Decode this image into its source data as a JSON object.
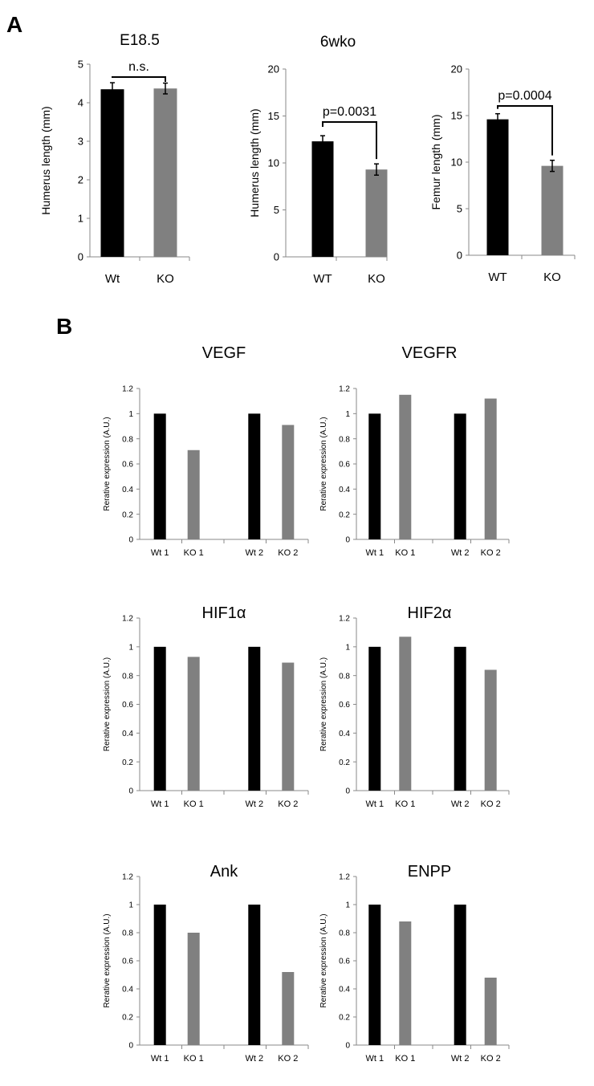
{
  "panel_labels": [
    "A",
    "B"
  ],
  "colors": {
    "wt": "#000000",
    "ko": "#808080",
    "axis": "#888888"
  },
  "chart_data": [
    {
      "type": "bar",
      "title": "E18.5",
      "ylabel": "Humerus length (mm)",
      "categories": [
        "Wt",
        "KO"
      ],
      "values": [
        4.35,
        4.37
      ],
      "errors": [
        0.17,
        0.14
      ],
      "ylim": [
        0,
        5
      ],
      "yticks": [
        "0",
        "1",
        "2",
        "3",
        "4",
        "5"
      ],
      "annotation": "n.s.",
      "grid": false,
      "legend": "none"
    },
    {
      "type": "bar",
      "title": "6wko",
      "ylabel": "Humerus length (mm)",
      "categories": [
        "WT",
        "KO"
      ],
      "values": [
        12.3,
        9.3
      ],
      "errors": [
        0.6,
        0.6
      ],
      "ylim": [
        0,
        20
      ],
      "yticks": [
        "0",
        "5",
        "10",
        "15",
        "20"
      ],
      "annotation": "p=0.0031",
      "grid": false,
      "legend": "none"
    },
    {
      "type": "bar",
      "title": "",
      "ylabel": "Femur length (mm)",
      "categories": [
        "WT",
        "KO"
      ],
      "values": [
        14.6,
        9.6
      ],
      "errors": [
        0.6,
        0.6
      ],
      "ylim": [
        0,
        20
      ],
      "yticks": [
        "0",
        "5",
        "10",
        "15",
        "20"
      ],
      "annotation": "p=0.0004",
      "grid": false,
      "legend": "none"
    },
    {
      "type": "bar",
      "title": "VEGF",
      "ylabel": "Rerative expression (A.U.)",
      "categories": [
        "Wt 1",
        "KO 1",
        "Wt 2",
        "KO 2"
      ],
      "values": [
        1.0,
        0.71,
        1.0,
        0.91
      ],
      "ylim": [
        0,
        1.2
      ],
      "yticks": [
        "0",
        "0.2",
        "0.4",
        "0.6",
        "0.8",
        "1",
        "1.2"
      ],
      "grid": false,
      "legend": "none"
    },
    {
      "type": "bar",
      "title": "VEGFR",
      "ylabel": "Rerative expression (A.U.)",
      "categories": [
        "Wt 1",
        "KO 1",
        "Wt 2",
        "KO 2"
      ],
      "values": [
        1.0,
        1.15,
        1.0,
        1.12
      ],
      "ylim": [
        0,
        1.2
      ],
      "yticks": [
        "0",
        "0.2",
        "0.4",
        "0.6",
        "0.8",
        "1",
        "1.2"
      ],
      "grid": false,
      "legend": "none"
    },
    {
      "type": "bar",
      "title": "HIF1α",
      "ylabel": "Rerative expression (A.U.)",
      "categories": [
        "Wt 1",
        "KO 1",
        "Wt 2",
        "KO 2"
      ],
      "values": [
        1.0,
        0.93,
        1.0,
        0.89
      ],
      "ylim": [
        0,
        1.2
      ],
      "yticks": [
        "0",
        "0.2",
        "0.4",
        "0.6",
        "0.8",
        "1",
        "1.2"
      ],
      "grid": false,
      "legend": "none"
    },
    {
      "type": "bar",
      "title": "HIF2α",
      "ylabel": "Rerative expression (A.U.)",
      "categories": [
        "Wt 1",
        "KO 1",
        "Wt 2",
        "KO 2"
      ],
      "values": [
        1.0,
        1.07,
        1.0,
        0.84
      ],
      "ylim": [
        0,
        1.2
      ],
      "yticks": [
        "0",
        "0.2",
        "0.4",
        "0.6",
        "0.8",
        "1",
        "1.2"
      ],
      "grid": false,
      "legend": "none"
    },
    {
      "type": "bar",
      "title": "Ank",
      "ylabel": "Rerative expression (A.U.)",
      "categories": [
        "Wt 1",
        "KO 1",
        "Wt 2",
        "KO 2"
      ],
      "values": [
        1.0,
        0.8,
        1.0,
        0.52
      ],
      "ylim": [
        0,
        1.2
      ],
      "yticks": [
        "0",
        "0.2",
        "0.4",
        "0.6",
        "0.8",
        "1",
        "1.2"
      ],
      "grid": false,
      "legend": "none"
    },
    {
      "type": "bar",
      "title": "ENPP",
      "ylabel": "Rerative expression (A.U.)",
      "categories": [
        "Wt 1",
        "KO 1",
        "Wt 2",
        "KO 2"
      ],
      "values": [
        1.0,
        0.88,
        1.0,
        0.48
      ],
      "ylim": [
        0,
        1.2
      ],
      "yticks": [
        "0",
        "0.2",
        "0.4",
        "0.6",
        "0.8",
        "1",
        "1.2"
      ],
      "grid": false,
      "legend": "none"
    }
  ]
}
